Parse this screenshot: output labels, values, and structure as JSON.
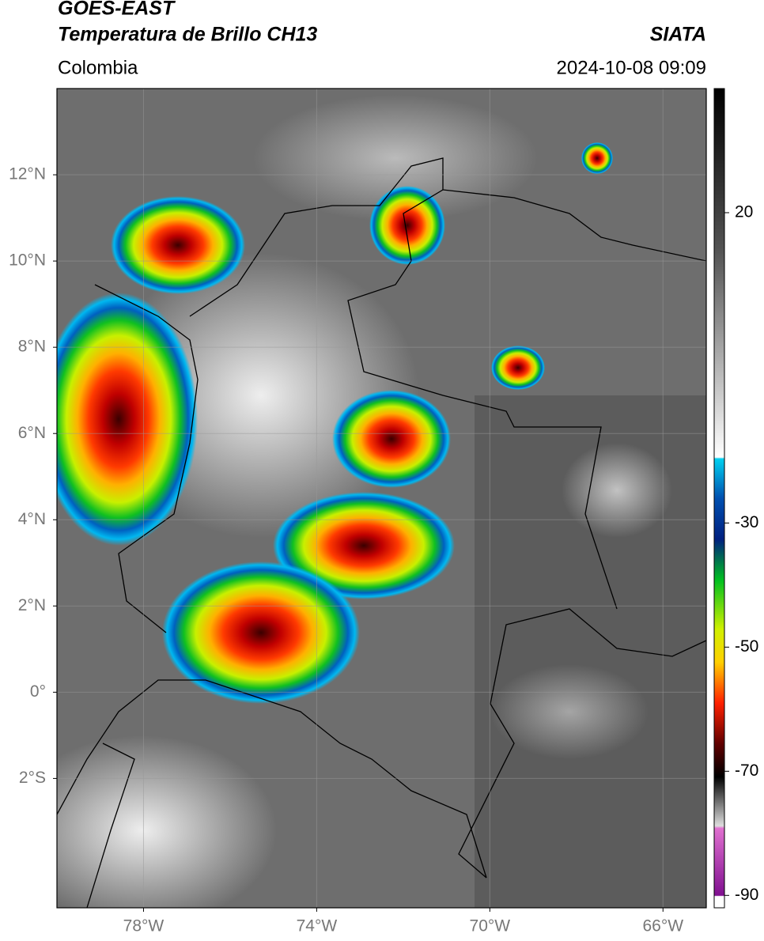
{
  "chart_data": {
    "type": "satellite-map",
    "title": "GOES-EAST",
    "subtitle": "Temperatura de Brillo CH13",
    "source": "SIATA",
    "region": "Colombia",
    "datetime": "2024-10-08 09:09",
    "xlim": [
      -80,
      -65
    ],
    "ylim": [
      -5,
      14
    ],
    "xticks": [
      {
        "value": -78,
        "label": "78°W"
      },
      {
        "value": -74,
        "label": "74°W"
      },
      {
        "value": -70,
        "label": "70°W"
      },
      {
        "value": -66,
        "label": "66°W"
      }
    ],
    "yticks": [
      {
        "value": 12,
        "label": "12°N"
      },
      {
        "value": 10,
        "label": "10°N"
      },
      {
        "value": 8,
        "label": "8°N"
      },
      {
        "value": 6,
        "label": "6°N"
      },
      {
        "value": 4,
        "label": "4°N"
      },
      {
        "value": 2,
        "label": "2°N"
      },
      {
        "value": 0,
        "label": "0°"
      },
      {
        "value": -2,
        "label": "2°S"
      }
    ],
    "clim": [
      -92,
      40
    ],
    "cticks": [
      20,
      -30,
      -50,
      -70,
      -90
    ],
    "grid": true
  }
}
